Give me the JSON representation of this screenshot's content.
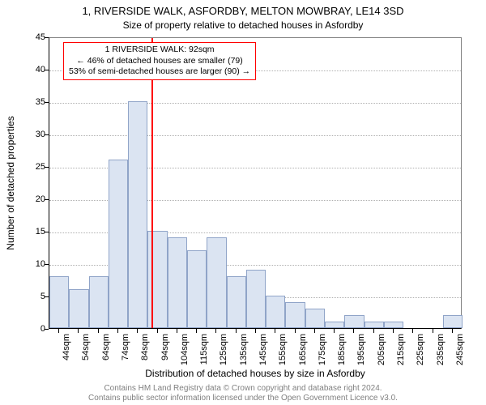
{
  "title": "1, RIVERSIDE WALK, ASFORDBY, MELTON MOWBRAY, LE14 3SD",
  "subtitle": "Size of property relative to detached houses in Asfordby",
  "y_axis_title": "Number of detached properties",
  "x_axis_title": "Distribution of detached houses by size in Asfordby",
  "footer1": "Contains HM Land Registry data © Crown copyright and database right 2024.",
  "footer2": "Contains public sector information licensed under the Open Government Licence v3.0.",
  "chart": {
    "type": "bar",
    "ylim": [
      0,
      45
    ],
    "ytick_step": 5,
    "grid_color": "#b0b0b0",
    "background_color": "#ffffff",
    "bar_fill": "#dbe4f2",
    "bar_edge": "#90a4c8",
    "ref_line_color": "#ff0000",
    "ref_line_x": 92,
    "annotation_border": "#ff0000",
    "annotation_lines": [
      "1 RIVERSIDE WALK: 92sqm",
      "← 46% of detached houses are smaller (79)",
      "53% of semi-detached houses are larger (90) →"
    ],
    "x_start": 40,
    "x_step": 10,
    "x_labels": [
      "44sqm",
      "54sqm",
      "64sqm",
      "74sqm",
      "84sqm",
      "94sqm",
      "104sqm",
      "115sqm",
      "125sqm",
      "135sqm",
      "145sqm",
      "155sqm",
      "165sqm",
      "175sqm",
      "185sqm",
      "195sqm",
      "205sqm",
      "215sqm",
      "225sqm",
      "235sqm",
      "245sqm"
    ],
    "values": [
      8,
      6,
      8,
      26,
      35,
      15,
      14,
      12,
      14,
      8,
      9,
      5,
      4,
      3,
      1,
      2,
      1,
      1,
      0,
      0,
      2
    ]
  }
}
